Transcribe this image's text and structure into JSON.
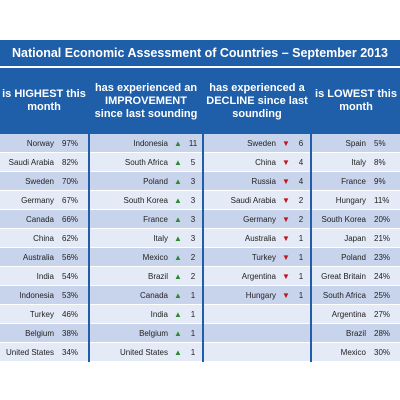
{
  "title": "National Economic Assessment of Countries – September 2013",
  "colors": {
    "header_bg": "#1f5ea8",
    "row_odd": "#c8d4ec",
    "row_even": "#e4eaf6",
    "up_arrow": "#2a8a2a",
    "down_arrow": "#c2141c"
  },
  "highest": {
    "header": "is HIGHEST this month",
    "rows": [
      {
        "country": "Norway",
        "value": "97%"
      },
      {
        "country": "Saudi Arabia",
        "value": "82%"
      },
      {
        "country": "Sweden",
        "value": "70%"
      },
      {
        "country": "Germany",
        "value": "67%"
      },
      {
        "country": "Canada",
        "value": "66%"
      },
      {
        "country": "China",
        "value": "62%"
      },
      {
        "country": "Australia",
        "value": "56%"
      },
      {
        "country": "India",
        "value": "54%"
      },
      {
        "country": "Indonesia",
        "value": "53%"
      },
      {
        "country": "Turkey",
        "value": "46%"
      },
      {
        "country": "Belgium",
        "value": "38%"
      },
      {
        "country": "United States",
        "value": "34%"
      }
    ]
  },
  "improvement": {
    "header": "has experienced an IMPROVEMENT since last sounding",
    "arrow_icon": "up-arrow-icon",
    "rows": [
      {
        "country": "Indonesia",
        "arrow": "▲",
        "value": "11"
      },
      {
        "country": "South Africa",
        "arrow": "▲",
        "value": "5"
      },
      {
        "country": "Poland",
        "arrow": "▲",
        "value": "3"
      },
      {
        "country": "South Korea",
        "arrow": "▲",
        "value": "3"
      },
      {
        "country": "France",
        "arrow": "▲",
        "value": "3"
      },
      {
        "country": "Italy",
        "arrow": "▲",
        "value": "3"
      },
      {
        "country": "Mexico",
        "arrow": "▲",
        "value": "2"
      },
      {
        "country": "Brazil",
        "arrow": "▲",
        "value": "2"
      },
      {
        "country": "Canada",
        "arrow": "▲",
        "value": "1"
      },
      {
        "country": "India",
        "arrow": "▲",
        "value": "1"
      },
      {
        "country": "Belgium",
        "arrow": "▲",
        "value": "1"
      },
      {
        "country": "United States",
        "arrow": "▲",
        "value": "1"
      }
    ]
  },
  "decline": {
    "header": "has experienced a DECLINE since last sounding",
    "arrow_icon": "down-arrow-icon",
    "rows": [
      {
        "country": "Sweden",
        "arrow": "▼",
        "value": "6"
      },
      {
        "country": "China",
        "arrow": "▼",
        "value": "4"
      },
      {
        "country": "Russia",
        "arrow": "▼",
        "value": "4"
      },
      {
        "country": "Saudi Arabia",
        "arrow": "▼",
        "value": "2"
      },
      {
        "country": "Germany",
        "arrow": "▼",
        "value": "2"
      },
      {
        "country": "Australia",
        "arrow": "▼",
        "value": "1"
      },
      {
        "country": "Turkey",
        "arrow": "▼",
        "value": "1"
      },
      {
        "country": "Argentina",
        "arrow": "▼",
        "value": "1"
      },
      {
        "country": "Hungary",
        "arrow": "▼",
        "value": "1"
      }
    ]
  },
  "lowest": {
    "header": "is LOWEST this month",
    "rows": [
      {
        "country": "Spain",
        "value": "5%"
      },
      {
        "country": "Italy",
        "value": "8%"
      },
      {
        "country": "France",
        "value": "9%"
      },
      {
        "country": "Hungary",
        "value": "11%"
      },
      {
        "country": "South Korea",
        "value": "20%"
      },
      {
        "country": "Japan",
        "value": "21%"
      },
      {
        "country": "Poland",
        "value": "23%"
      },
      {
        "country": "Great Britain",
        "value": "24%"
      },
      {
        "country": "South Africa",
        "value": "25%"
      },
      {
        "country": "Argentina",
        "value": "27%"
      },
      {
        "country": "Brazil",
        "value": "28%"
      },
      {
        "country": "Mexico",
        "value": "30%"
      }
    ]
  }
}
